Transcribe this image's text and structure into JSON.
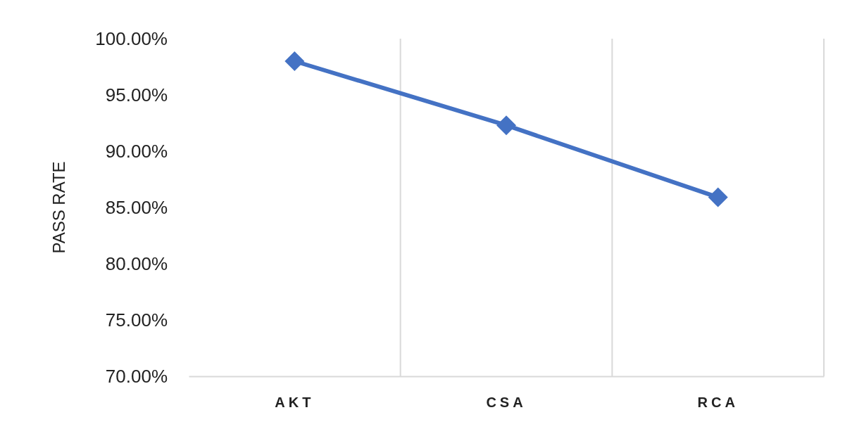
{
  "chart_data": {
    "type": "line",
    "ylabel": "PASS RATE",
    "categories": [
      "AKT",
      "CSA",
      "RCA"
    ],
    "series": [
      {
        "color": "#4472c4",
        "values": [
          98.0,
          92.3,
          85.9
        ]
      }
    ],
    "ylim": [
      70,
      100
    ],
    "yticks": [
      {
        "value": 70,
        "label": "70.00%"
      },
      {
        "value": 75,
        "label": "75.00%"
      },
      {
        "value": 80,
        "label": "80.00%"
      },
      {
        "value": 85,
        "label": "85.00%"
      },
      {
        "value": 90,
        "label": "90.00%"
      },
      {
        "value": 95,
        "label": "95.00%"
      },
      {
        "value": 100,
        "label": "100.00%"
      }
    ],
    "grid": "x",
    "marker": "diamond",
    "line_style": "solid"
  }
}
